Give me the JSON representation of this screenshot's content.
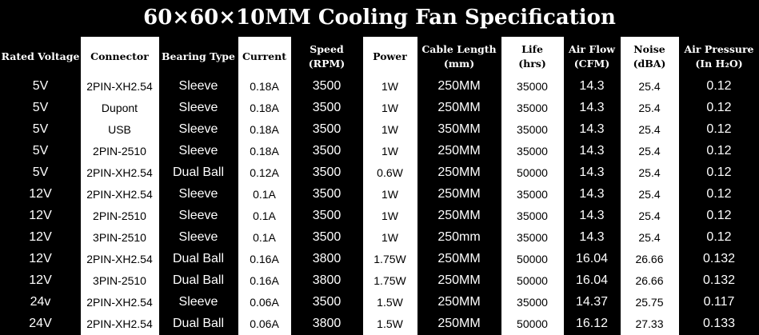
{
  "title": "60×60×10MM Cooling Fan Specification",
  "headers": [
    {
      "line1": "Rated Voltage",
      "line2": ""
    },
    {
      "line1": "Connector",
      "line2": ""
    },
    {
      "line1": "Bearing Type",
      "line2": ""
    },
    {
      "line1": "Current",
      "line2": ""
    },
    {
      "line1": "Speed",
      "line2": "(RPM)"
    },
    {
      "line1": "Power",
      "line2": ""
    },
    {
      "line1": "Cable Length",
      "line2": "(mm)"
    },
    {
      "line1": "Life",
      "line2": "(hrs)"
    },
    {
      "line1": "Air Flow",
      "line2": "(CFM)"
    },
    {
      "line1": "Noise",
      "line2": "(dBA)"
    },
    {
      "line1": "Air Pressure",
      "line2": "(In H₂O)"
    }
  ],
  "rows": [
    [
      "5V",
      "2PIN-XH2.54",
      "Sleeve",
      "0.18A",
      "3500",
      "1W",
      "250MM",
      "35000",
      "14.3",
      "25.4",
      "0.12"
    ],
    [
      "5V",
      "Dupont",
      "Sleeve",
      "0.18A",
      "3500",
      "1W",
      "250MM",
      "35000",
      "14.3",
      "25.4",
      "0.12"
    ],
    [
      "5V",
      "USB",
      "Sleeve",
      "0.18A",
      "3500",
      "1W",
      "350MM",
      "35000",
      "14.3",
      "25.4",
      "0.12"
    ],
    [
      "5V",
      "2PIN-2510",
      "Sleeve",
      "0.18A",
      "3500",
      "1W",
      "250MM",
      "35000",
      "14.3",
      "25.4",
      "0.12"
    ],
    [
      "5V",
      "2PIN-XH2.54",
      "Dual Ball",
      "0.12A",
      "3500",
      "0.6W",
      "250MM",
      "50000",
      "14.3",
      "25.4",
      "0.12"
    ],
    [
      "12V",
      "2PIN-XH2.54",
      "Sleeve",
      "0.1A",
      "3500",
      "1W",
      "250MM",
      "35000",
      "14.3",
      "25.4",
      "0.12"
    ],
    [
      "12V",
      "2PIN-2510",
      "Sleeve",
      "0.1A",
      "3500",
      "1W",
      "250MM",
      "35000",
      "14.3",
      "25.4",
      "0.12"
    ],
    [
      "12V",
      "3PIN-2510",
      "Sleeve",
      "0.1A",
      "3500",
      "1W",
      "250mm",
      "35000",
      "14.3",
      "25.4",
      "0.12"
    ],
    [
      "12V",
      "2PIN-XH2.54",
      "Dual Ball",
      "0.16A",
      "3800",
      "1.75W",
      "250MM",
      "50000",
      "16.04",
      "26.66",
      "0.132"
    ],
    [
      "12V",
      "3PIN-2510",
      "Dual Ball",
      "0.16A",
      "3800",
      "1.75W",
      "250MM",
      "50000",
      "16.04",
      "26.66",
      "0.132"
    ],
    [
      "24v",
      "2PIN-XH2.54",
      "Sleeve",
      "0.06A",
      "3500",
      "1.5W",
      "250MM",
      "35000",
      "14.37",
      "25.75",
      "0.117"
    ],
    [
      "24V",
      "2PIN-XH2.54",
      "Dual Ball",
      "0.06A",
      "3800",
      "1.5W",
      "250MM",
      "50000",
      "16.12",
      "27.33",
      "0.133"
    ]
  ],
  "colors": {
    "background": "#000000",
    "text_dark_bg": "#ffffff",
    "light_column_bg": "#ffffff",
    "text_light_bg": "#000000"
  }
}
